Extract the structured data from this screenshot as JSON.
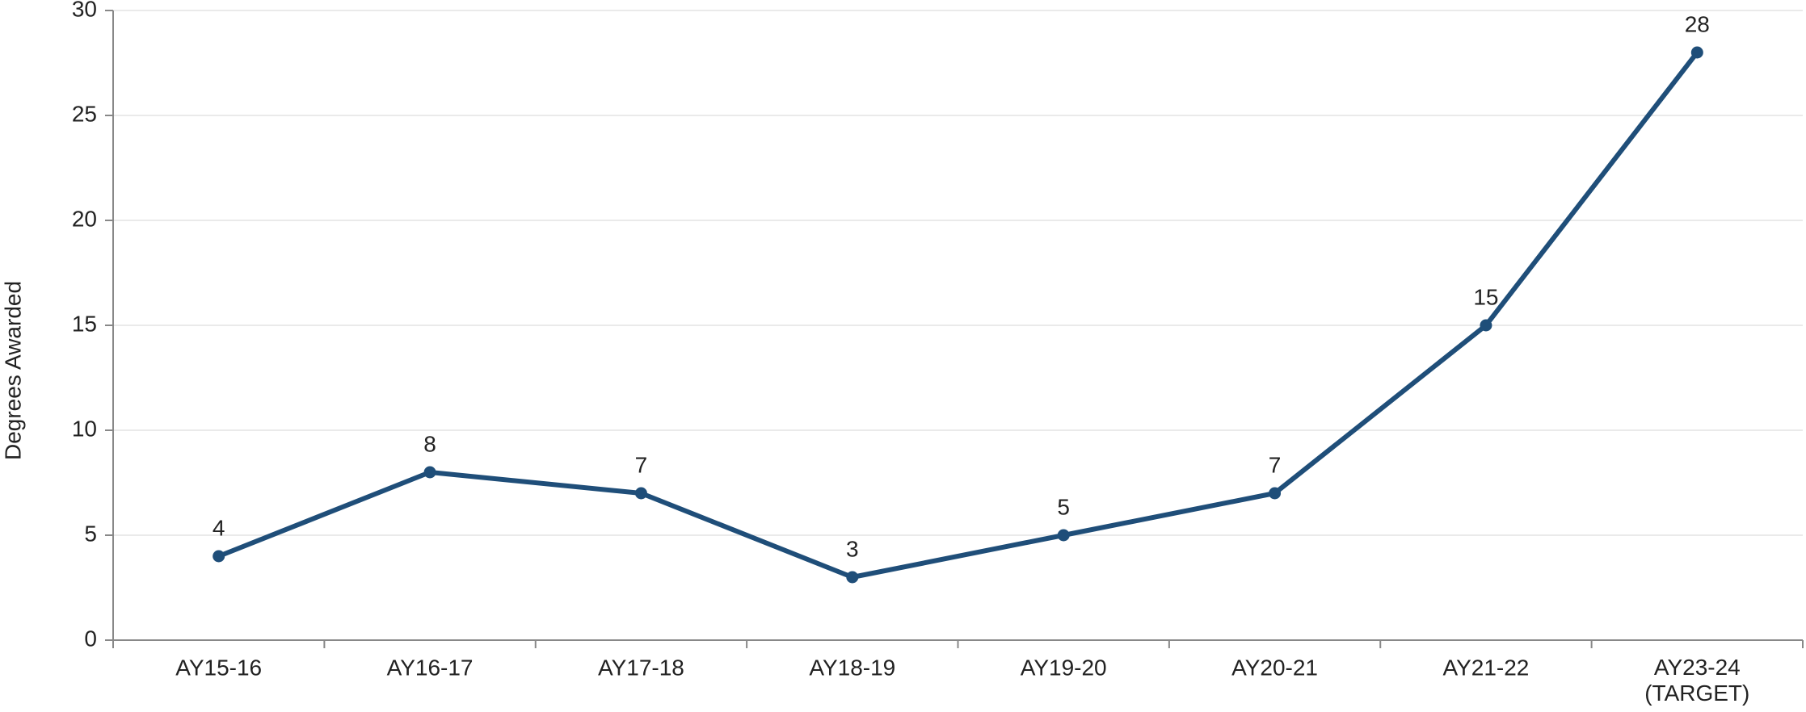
{
  "chart_data": {
    "type": "line",
    "y_label": "Degrees Awarded",
    "categories": [
      "AY15-16",
      "AY16-17",
      "AY17-18",
      "AY18-19",
      "AY19-20",
      "AY20-21",
      "AY21-22",
      "AY23-24\n(TARGET)"
    ],
    "values": [
      4,
      8,
      7,
      3,
      5,
      7,
      15,
      28
    ],
    "color": "#1f4e79",
    "ylim": [
      0,
      30
    ],
    "yticks": [
      0,
      5,
      10,
      15,
      20,
      25,
      30
    ],
    "grid": true
  }
}
